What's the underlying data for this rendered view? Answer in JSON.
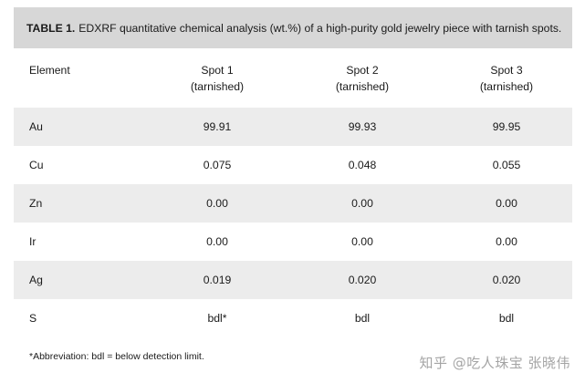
{
  "table": {
    "caption_label": "TABLE 1.",
    "caption_text": "EDXRF quantitative chemical analysis (wt.%) of a high-purity gold jewelry piece with tarnish spots.",
    "headers": {
      "element": "Element",
      "spot1_line1": "Spot 1",
      "spot1_line2": "(tarnished)",
      "spot2_line1": "Spot 2",
      "spot2_line2": "(tarnished)",
      "spot3_line1": "Spot 3",
      "spot3_line2": "(tarnished)"
    },
    "rows": [
      {
        "element": "Au",
        "spot1": "99.91",
        "spot2": "99.93",
        "spot3": "99.95"
      },
      {
        "element": "Cu",
        "spot1": "0.075",
        "spot2": "0.048",
        "spot3": "0.055"
      },
      {
        "element": "Zn",
        "spot1": "0.00",
        "spot2": "0.00",
        "spot3": "0.00"
      },
      {
        "element": "Ir",
        "spot1": "0.00",
        "spot2": "0.00",
        "spot3": "0.00"
      },
      {
        "element": "Ag",
        "spot1": "0.019",
        "spot2": "0.020",
        "spot3": "0.020"
      },
      {
        "element": "S",
        "spot1": "bdl*",
        "spot2": "bdl",
        "spot3": "bdl"
      }
    ],
    "footnote": "*Abbreviation: bdl = below detection limit."
  },
  "watermark": "知乎 @吃人珠宝 张晓伟",
  "colors": {
    "caption_bg": "#d7d7d7",
    "row_shade": "#ececec",
    "text": "#1a1a1a"
  }
}
